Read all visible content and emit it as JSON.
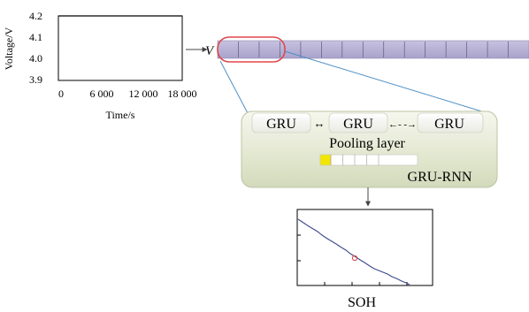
{
  "voltage_chart": {
    "ylabel": "Voltage/V",
    "yticks": [
      "4.2",
      "4.1",
      "4.0",
      "3.9"
    ],
    "xticks": [
      "0",
      "6 000",
      "12 000",
      "18 000"
    ],
    "xlabel": "Time/s",
    "ylim": [
      3.9,
      4.2
    ],
    "xlim": [
      0,
      18000
    ],
    "series_color": "#000000"
  },
  "input_symbol": "V",
  "sequence_bar": {
    "fill_color": "#b9b3d6",
    "segment_count": 15,
    "highlight_color": "#e0474c"
  },
  "gru_block": {
    "cells": [
      "GRU",
      "GRU",
      "GRU"
    ],
    "arrows": [
      "↔",
      "←- -→"
    ],
    "pooling_label": "Pooling layer",
    "model_label": "GRU-RNN",
    "panel_color": "#e7ebd6",
    "pool_highlight_color": "#f2e600"
  },
  "soh_chart": {
    "xlabel": "SOH",
    "line_color": "#3b4a8c",
    "marker_color": "#e0474c"
  }
}
